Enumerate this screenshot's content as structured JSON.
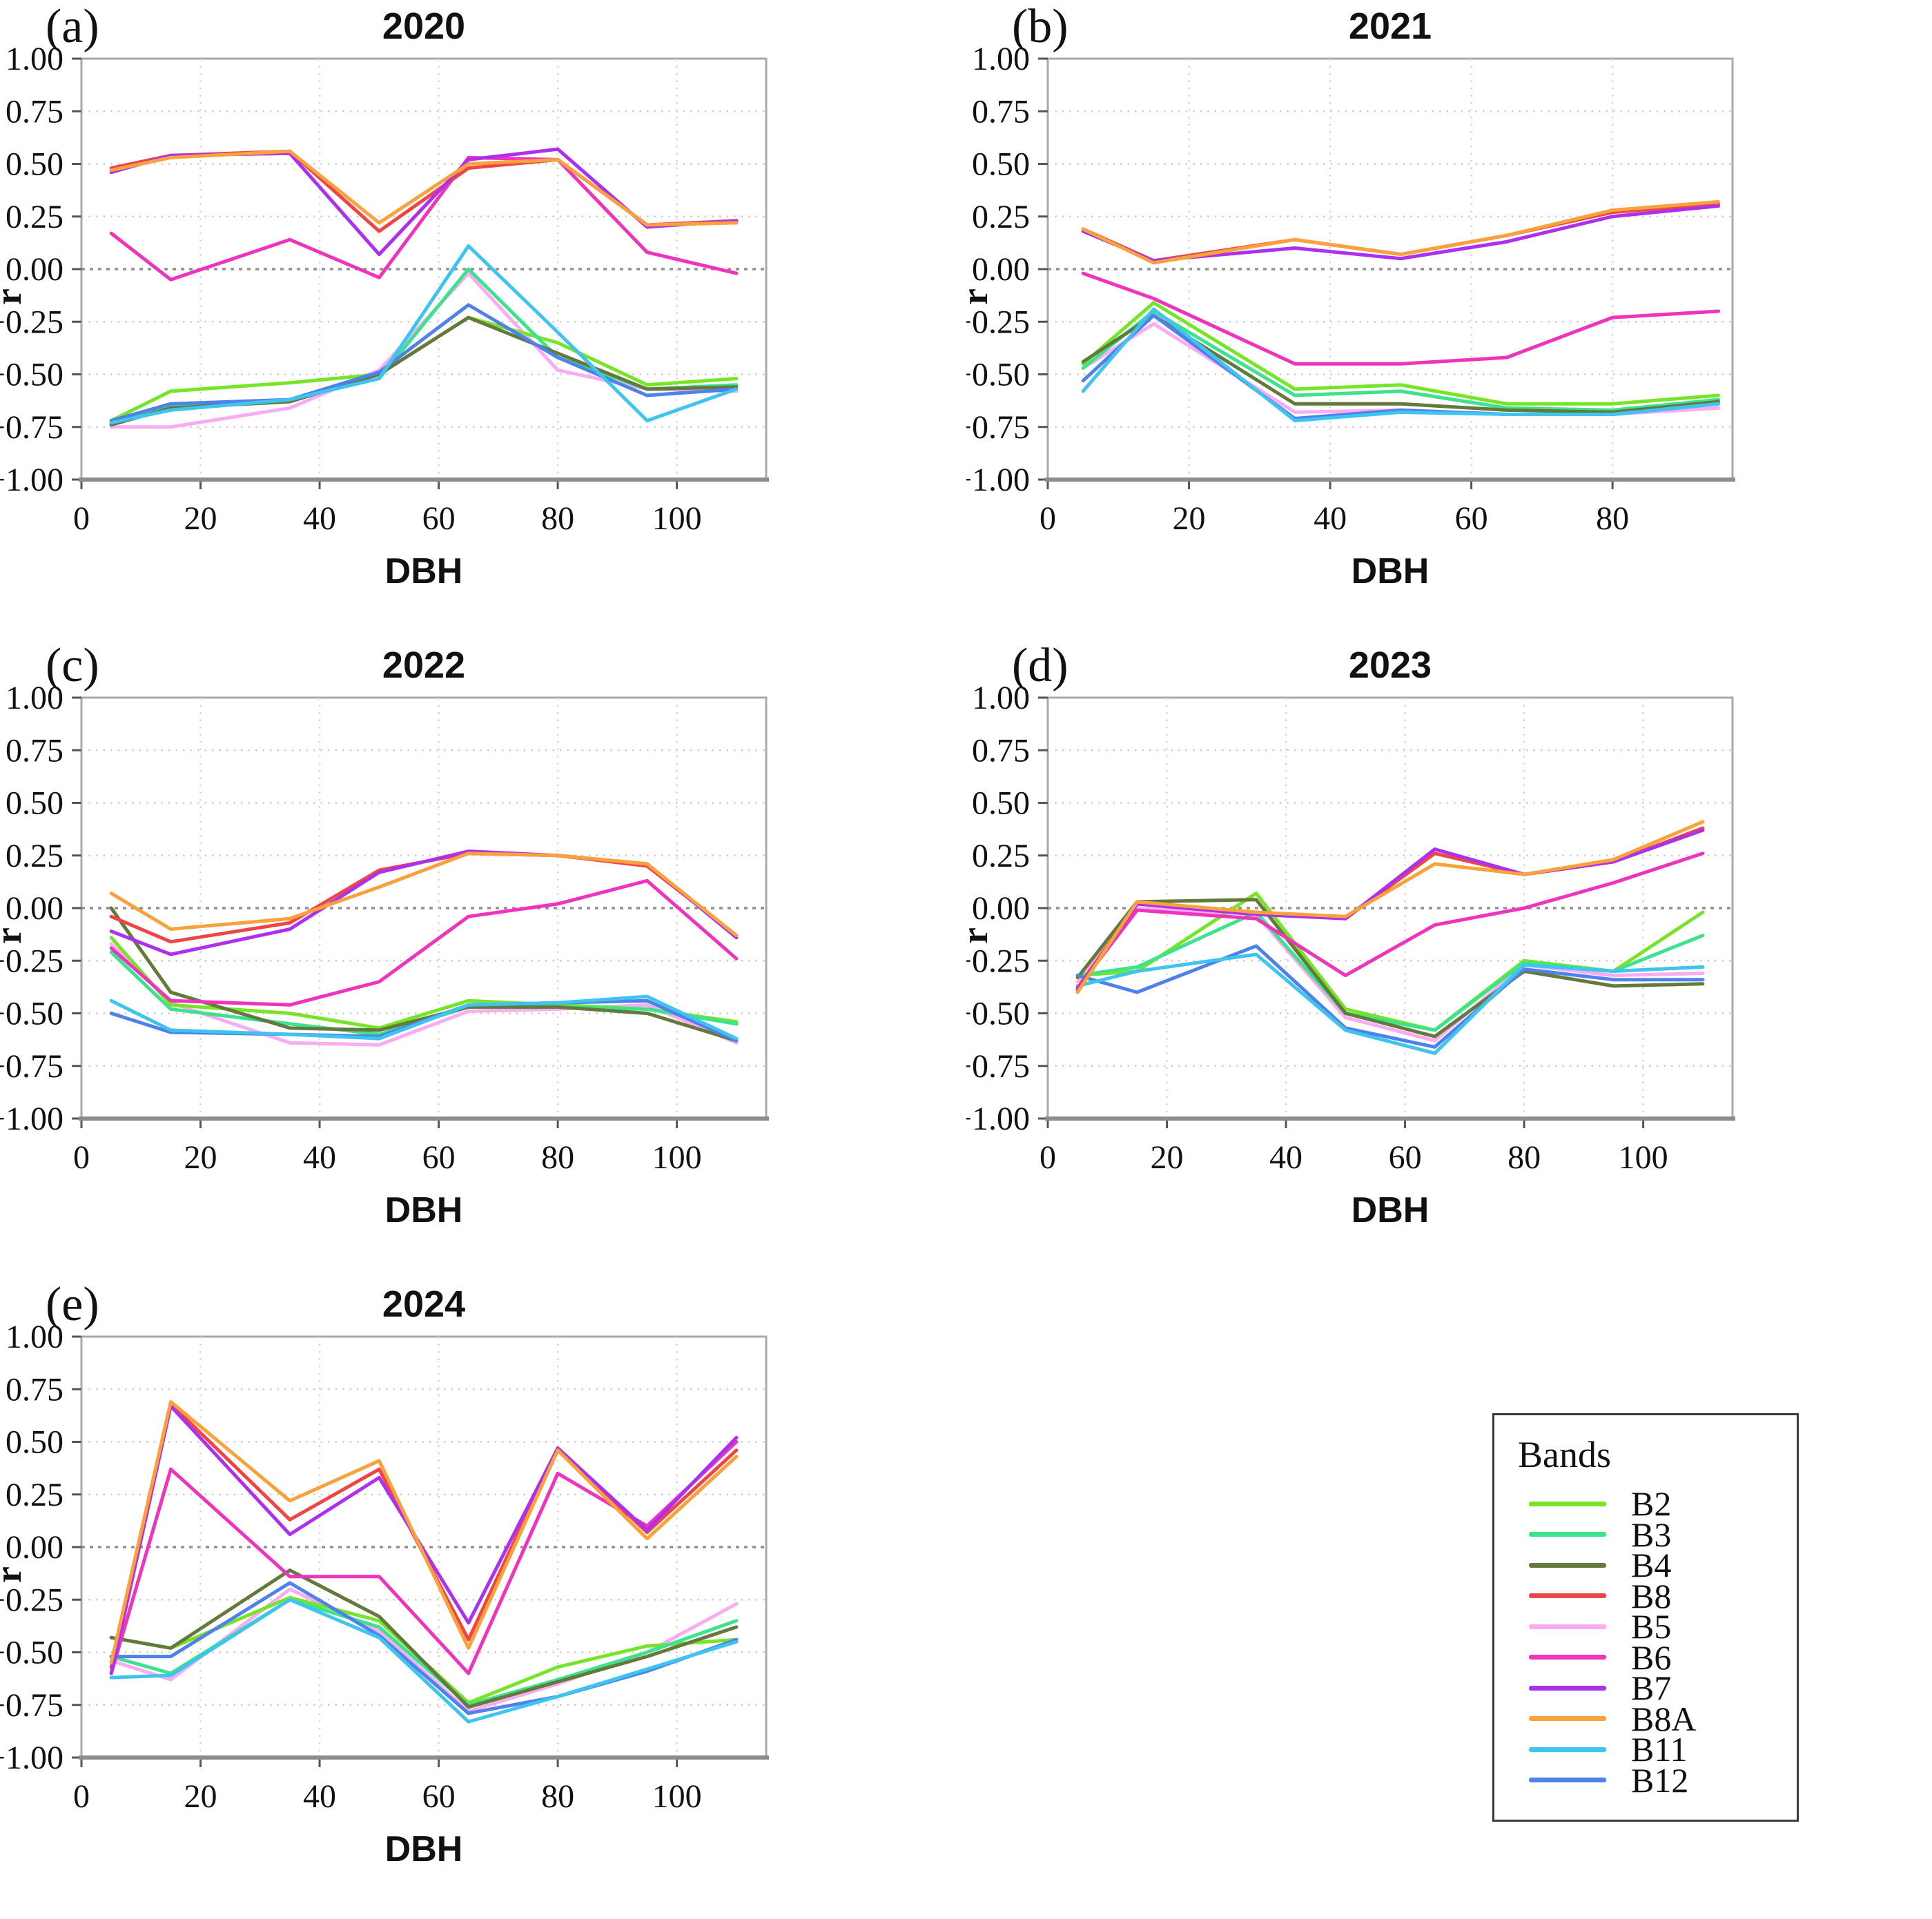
{
  "axes": {
    "ylabel": "r",
    "xlabel": "DBH",
    "ylim": [
      -1.0,
      1.0
    ],
    "y_ticks": [
      1.0,
      0.75,
      0.5,
      0.25,
      0.0,
      -0.25,
      -0.5,
      -0.75,
      -1.0
    ],
    "y_tick_labels": [
      "1.00",
      "0.75",
      "0.50",
      "0.25",
      "0.00",
      "−0.25",
      "−0.50",
      "−0.75",
      "−1.00"
    ],
    "grid": "dotted horizontal and vertical gridlines, darker dashed zero line"
  },
  "legend": {
    "title": "Bands",
    "entries": [
      {
        "label": "B2",
        "color": "#76E528"
      },
      {
        "label": "B3",
        "color": "#3CE38C"
      },
      {
        "label": "B4",
        "color": "#64793C"
      },
      {
        "label": "B8",
        "color": "#F04545"
      },
      {
        "label": "B5",
        "color": "#F9ACF2"
      },
      {
        "label": "B6",
        "color": "#EF33BD"
      },
      {
        "label": "B7",
        "color": "#AC30EE"
      },
      {
        "label": "B8A",
        "color": "#F9A13B"
      },
      {
        "label": "B11",
        "color": "#3EC4EF"
      },
      {
        "label": "B12",
        "color": "#4E82EA"
      }
    ]
  },
  "chart_data": [
    {
      "type": "line",
      "panel_label": "(a)",
      "title": "2020",
      "xlabel": "DBH",
      "ylabel": "r",
      "xlim": [
        0,
        115
      ],
      "ylim": [
        -1.0,
        1.0
      ],
      "x_ticks": [
        0,
        20,
        40,
        60,
        80,
        100
      ],
      "x": [
        5,
        15,
        35,
        50,
        65,
        80,
        95,
        110
      ],
      "series": [
        {
          "name": "B5",
          "values": [
            -0.75,
            -0.75,
            -0.66,
            -0.48,
            -0.02,
            -0.48,
            -0.57,
            -0.58
          ]
        },
        {
          "name": "B2",
          "values": [
            -0.72,
            -0.58,
            -0.54,
            -0.5,
            -0.23,
            -0.35,
            -0.55,
            -0.52
          ]
        },
        {
          "name": "B3",
          "values": [
            -0.73,
            -0.65,
            -0.62,
            -0.52,
            0.0,
            -0.42,
            -0.57,
            -0.55
          ]
        },
        {
          "name": "B4",
          "values": [
            -0.74,
            -0.66,
            -0.63,
            -0.5,
            -0.23,
            -0.4,
            -0.57,
            -0.56
          ]
        },
        {
          "name": "B12",
          "values": [
            -0.72,
            -0.64,
            -0.62,
            -0.49,
            -0.17,
            -0.42,
            -0.6,
            -0.57
          ]
        },
        {
          "name": "B11",
          "values": [
            -0.73,
            -0.67,
            -0.62,
            -0.52,
            0.11,
            -0.3,
            -0.72,
            -0.57
          ]
        },
        {
          "name": "B6",
          "values": [
            0.17,
            -0.05,
            0.14,
            -0.04,
            0.53,
            0.52,
            0.08,
            -0.02
          ]
        },
        {
          "name": "B8",
          "values": [
            0.48,
            0.54,
            0.56,
            0.18,
            0.48,
            0.52,
            0.21,
            0.23
          ]
        },
        {
          "name": "B7",
          "values": [
            0.46,
            0.54,
            0.55,
            0.07,
            0.52,
            0.57,
            0.2,
            0.23
          ]
        },
        {
          "name": "B8A",
          "values": [
            0.47,
            0.53,
            0.56,
            0.22,
            0.5,
            0.52,
            0.21,
            0.22
          ]
        }
      ]
    },
    {
      "type": "line",
      "panel_label": "(b)",
      "title": "2021",
      "xlabel": "DBH",
      "ylabel": "r",
      "xlim": [
        0,
        97
      ],
      "ylim": [
        -1.0,
        1.0
      ],
      "x_ticks": [
        0,
        20,
        40,
        60,
        80
      ],
      "x": [
        5,
        15,
        35,
        50,
        65,
        80,
        95
      ],
      "series": [
        {
          "name": "B5",
          "values": [
            -0.47,
            -0.26,
            -0.68,
            -0.67,
            -0.69,
            -0.69,
            -0.66
          ]
        },
        {
          "name": "B2",
          "values": [
            -0.45,
            -0.16,
            -0.57,
            -0.55,
            -0.64,
            -0.64,
            -0.6
          ]
        },
        {
          "name": "B3",
          "values": [
            -0.47,
            -0.2,
            -0.6,
            -0.58,
            -0.66,
            -0.67,
            -0.62
          ]
        },
        {
          "name": "B4",
          "values": [
            -0.44,
            -0.22,
            -0.64,
            -0.64,
            -0.67,
            -0.68,
            -0.63
          ]
        },
        {
          "name": "B12",
          "values": [
            -0.53,
            -0.22,
            -0.71,
            -0.67,
            -0.69,
            -0.69,
            -0.64
          ]
        },
        {
          "name": "B11",
          "values": [
            -0.58,
            -0.19,
            -0.72,
            -0.68,
            -0.69,
            -0.69,
            -0.64
          ]
        },
        {
          "name": "B6",
          "values": [
            -0.02,
            -0.14,
            -0.45,
            -0.45,
            -0.42,
            -0.23,
            -0.2
          ]
        },
        {
          "name": "B8",
          "values": [
            0.19,
            0.04,
            0.14,
            0.07,
            0.16,
            0.27,
            0.31
          ]
        },
        {
          "name": "B7",
          "values": [
            0.18,
            0.04,
            0.1,
            0.05,
            0.13,
            0.25,
            0.3
          ]
        },
        {
          "name": "B8A",
          "values": [
            0.19,
            0.03,
            0.14,
            0.07,
            0.16,
            0.28,
            0.32
          ]
        }
      ]
    },
    {
      "type": "line",
      "panel_label": "(c)",
      "title": "2022",
      "xlabel": "DBH",
      "ylabel": "r",
      "xlim": [
        0,
        115
      ],
      "ylim": [
        -1.0,
        1.0
      ],
      "x_ticks": [
        0,
        20,
        40,
        60,
        80,
        100
      ],
      "x": [
        5,
        15,
        35,
        50,
        65,
        80,
        95,
        110
      ],
      "series": [
        {
          "name": "B5",
          "values": [
            -0.17,
            -0.45,
            -0.64,
            -0.65,
            -0.49,
            -0.48,
            -0.46,
            -0.64
          ]
        },
        {
          "name": "B2",
          "values": [
            -0.14,
            -0.46,
            -0.5,
            -0.57,
            -0.44,
            -0.46,
            -0.48,
            -0.54
          ]
        },
        {
          "name": "B3",
          "values": [
            -0.21,
            -0.48,
            -0.55,
            -0.6,
            -0.47,
            -0.47,
            -0.48,
            -0.55
          ]
        },
        {
          "name": "B4",
          "values": [
            0.0,
            -0.4,
            -0.57,
            -0.58,
            -0.47,
            -0.47,
            -0.5,
            -0.63
          ]
        },
        {
          "name": "B12",
          "values": [
            -0.5,
            -0.59,
            -0.6,
            -0.61,
            -0.46,
            -0.45,
            -0.44,
            -0.63
          ]
        },
        {
          "name": "B11",
          "values": [
            -0.44,
            -0.58,
            -0.6,
            -0.62,
            -0.46,
            -0.45,
            -0.42,
            -0.62
          ]
        },
        {
          "name": "B6",
          "values": [
            -0.19,
            -0.44,
            -0.46,
            -0.35,
            -0.04,
            0.02,
            0.13,
            -0.24
          ]
        },
        {
          "name": "B8",
          "values": [
            -0.04,
            -0.16,
            -0.07,
            0.18,
            0.26,
            0.25,
            0.2,
            -0.13
          ]
        },
        {
          "name": "B7",
          "values": [
            -0.11,
            -0.22,
            -0.1,
            0.17,
            0.27,
            0.25,
            0.21,
            -0.14
          ]
        },
        {
          "name": "B8A",
          "values": [
            0.07,
            -0.1,
            -0.05,
            0.1,
            0.26,
            0.25,
            0.21,
            -0.13
          ]
        }
      ]
    },
    {
      "type": "line",
      "panel_label": "(d)",
      "title": "2023",
      "xlabel": "DBH",
      "ylabel": "r",
      "xlim": [
        0,
        115
      ],
      "ylim": [
        -1.0,
        1.0
      ],
      "x_ticks": [
        0,
        20,
        40,
        60,
        80,
        100
      ],
      "x": [
        5,
        15,
        35,
        50,
        65,
        80,
        95,
        110
      ],
      "series": [
        {
          "name": "B5",
          "values": [
            -0.35,
            0.0,
            -0.03,
            -0.52,
            -0.63,
            -0.27,
            -0.32,
            -0.31
          ]
        },
        {
          "name": "B2",
          "values": [
            -0.32,
            -0.3,
            0.07,
            -0.48,
            -0.58,
            -0.25,
            -0.3,
            -0.02
          ]
        },
        {
          "name": "B3",
          "values": [
            -0.32,
            -0.28,
            -0.02,
            -0.5,
            -0.58,
            -0.26,
            -0.3,
            -0.13
          ]
        },
        {
          "name": "B4",
          "values": [
            -0.33,
            0.03,
            0.04,
            -0.5,
            -0.61,
            -0.3,
            -0.37,
            -0.36
          ]
        },
        {
          "name": "B12",
          "values": [
            -0.32,
            -0.4,
            -0.18,
            -0.57,
            -0.66,
            -0.29,
            -0.34,
            -0.34
          ]
        },
        {
          "name": "B11",
          "values": [
            -0.37,
            -0.3,
            -0.22,
            -0.58,
            -0.69,
            -0.27,
            -0.3,
            -0.28
          ]
        },
        {
          "name": "B6",
          "values": [
            -0.38,
            -0.01,
            -0.05,
            -0.32,
            -0.08,
            0.0,
            0.12,
            0.26
          ]
        },
        {
          "name": "B8",
          "values": [
            -0.38,
            0.02,
            -0.02,
            -0.05,
            0.26,
            0.16,
            0.22,
            0.38
          ]
        },
        {
          "name": "B7",
          "values": [
            -0.39,
            0.02,
            -0.03,
            -0.05,
            0.28,
            0.16,
            0.22,
            0.37
          ]
        },
        {
          "name": "B8A",
          "values": [
            -0.4,
            0.03,
            -0.02,
            -0.04,
            0.21,
            0.16,
            0.23,
            0.41
          ]
        }
      ]
    },
    {
      "type": "line",
      "panel_label": "(e)",
      "title": "2024",
      "xlabel": "DBH",
      "ylabel": "r",
      "xlim": [
        0,
        115
      ],
      "ylim": [
        -1.0,
        1.0
      ],
      "x_ticks": [
        0,
        20,
        40,
        60,
        80,
        100
      ],
      "x": [
        5,
        15,
        35,
        50,
        65,
        80,
        95,
        110
      ],
      "series": [
        {
          "name": "B5",
          "values": [
            -0.54,
            -0.63,
            -0.2,
            -0.4,
            -0.78,
            -0.65,
            -0.5,
            -0.27
          ]
        },
        {
          "name": "B2",
          "values": [
            -0.43,
            -0.48,
            -0.24,
            -0.35,
            -0.74,
            -0.57,
            -0.47,
            -0.44
          ]
        },
        {
          "name": "B3",
          "values": [
            -0.52,
            -0.6,
            -0.25,
            -0.38,
            -0.75,
            -0.63,
            -0.5,
            -0.35
          ]
        },
        {
          "name": "B4",
          "values": [
            -0.43,
            -0.48,
            -0.11,
            -0.33,
            -0.76,
            -0.64,
            -0.52,
            -0.38
          ]
        },
        {
          "name": "B12",
          "values": [
            -0.52,
            -0.52,
            -0.17,
            -0.42,
            -0.79,
            -0.71,
            -0.59,
            -0.44
          ]
        },
        {
          "name": "B11",
          "values": [
            -0.62,
            -0.61,
            -0.25,
            -0.43,
            -0.83,
            -0.71,
            -0.58,
            -0.45
          ]
        },
        {
          "name": "B6",
          "values": [
            -0.6,
            0.37,
            -0.14,
            -0.14,
            -0.6,
            0.35,
            0.1,
            0.5
          ]
        },
        {
          "name": "B8",
          "values": [
            -0.57,
            0.68,
            0.13,
            0.37,
            -0.44,
            0.47,
            0.07,
            0.46
          ]
        },
        {
          "name": "B7",
          "values": [
            -0.6,
            0.67,
            0.06,
            0.33,
            -0.36,
            0.47,
            0.08,
            0.52
          ]
        },
        {
          "name": "B8A",
          "values": [
            -0.55,
            0.69,
            0.22,
            0.41,
            -0.48,
            0.46,
            0.04,
            0.43
          ]
        }
      ]
    }
  ]
}
